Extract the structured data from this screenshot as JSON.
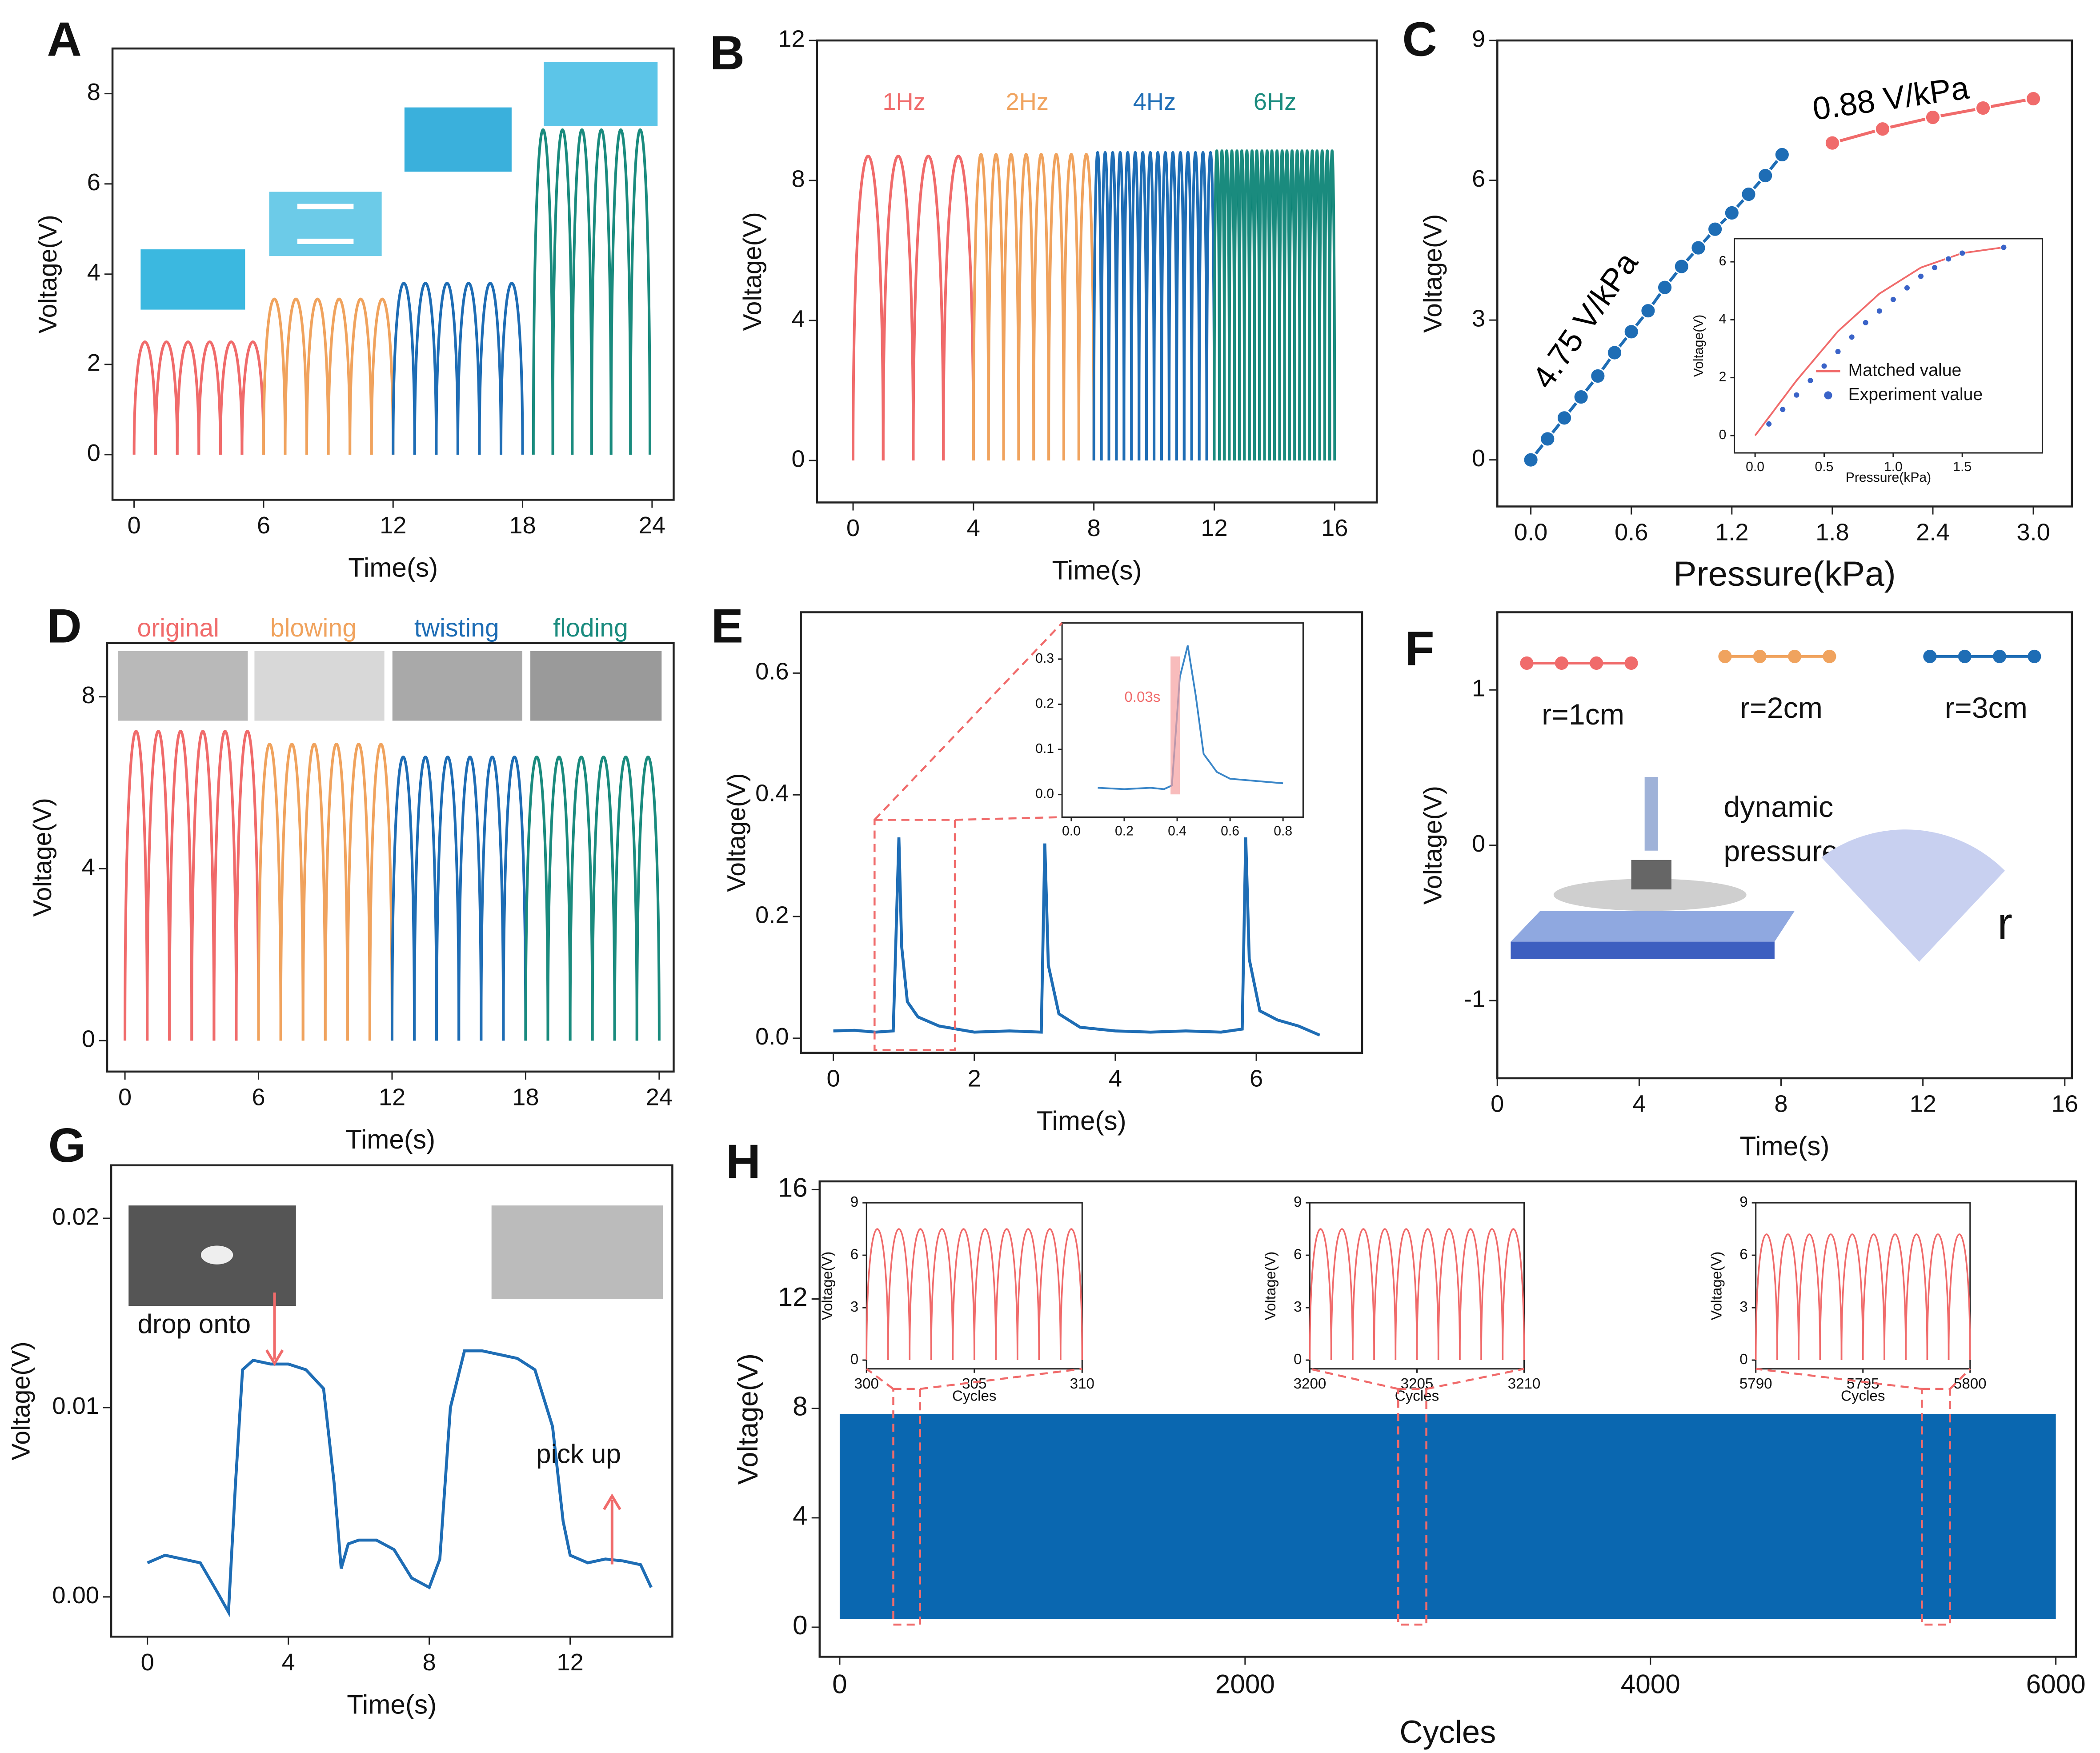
{
  "chart_data": [
    {
      "type": "pulse",
      "panel": "A",
      "xlabel": "Time(s)",
      "ylabel": "Voltage(V)",
      "xlim": [
        -1,
        25
      ],
      "ylim": [
        -1,
        9
      ],
      "xticks": [
        0,
        6,
        12,
        18,
        24
      ],
      "yticks": [
        0,
        2,
        4,
        6,
        8
      ],
      "series": [
        {
          "color": "#f06b6b",
          "x": [
            0,
            1,
            2,
            3,
            4,
            5
          ],
          "values": [
            2.5,
            2.5,
            2.5,
            2.5,
            2.5,
            2.5
          ]
        },
        {
          "color": "#f0a35e",
          "x": [
            6,
            7,
            8,
            9,
            10,
            11
          ],
          "values": [
            3.45,
            3.45,
            3.45,
            3.45,
            3.45,
            3.45
          ]
        },
        {
          "color": "#1e6db5",
          "x": [
            12,
            13,
            14,
            15,
            16,
            17
          ],
          "values": [
            3.8,
            3.8,
            3.8,
            3.8,
            3.8,
            3.8
          ]
        },
        {
          "color": "#1a8b7e",
          "x": [
            18.5,
            19.4,
            20.3,
            21.2,
            22.1,
            23.0
          ],
          "values": [
            7.2,
            7.2,
            7.2,
            7.2,
            7.2,
            7.2
          ]
        }
      ]
    },
    {
      "type": "pulse",
      "panel": "B",
      "xlabel": "Time(s)",
      "ylabel": "Voltage(V)",
      "xlim": [
        -1.2,
        17.4
      ],
      "ylim": [
        -1.2,
        12
      ],
      "xticks": [
        0,
        4,
        8,
        12,
        16
      ],
      "yticks": [
        0,
        4,
        8,
        12
      ],
      "series": [
        {
          "name": "1Hz",
          "color": "#f06b6b",
          "x": [
            0,
            1,
            2,
            3
          ],
          "values": [
            8.7,
            8.7,
            8.7,
            8.7
          ]
        },
        {
          "name": "2Hz",
          "color": "#f0a35e",
          "x": [
            4,
            4.5,
            5,
            5.5,
            6,
            6.5,
            7,
            7.5
          ],
          "values": [
            8.75,
            8.75,
            8.75,
            8.75,
            8.75,
            8.75,
            8.75,
            8.75
          ]
        },
        {
          "name": "4Hz",
          "color": "#1e6db5",
          "x": [
            8,
            8.25,
            8.5,
            8.75,
            9,
            9.25,
            9.5,
            9.75,
            10,
            10.25,
            10.5,
            10.75,
            11,
            11.25,
            11.5,
            11.75
          ],
          "values": [
            8.8,
            8.8,
            8.8,
            8.8,
            8.8,
            8.8,
            8.8,
            8.8,
            8.8,
            8.8,
            8.8,
            8.8,
            8.8,
            8.8,
            8.8,
            8.8
          ]
        },
        {
          "name": "6Hz",
          "color": "#1a8b7e",
          "x": [
            12,
            12.17,
            12.33,
            12.5,
            12.67,
            12.83,
            13,
            13.17,
            13.33,
            13.5,
            13.67,
            13.83,
            14,
            14.17,
            14.33,
            14.5,
            14.67,
            14.83,
            15,
            15.17,
            15.33,
            15.5,
            15.67,
            15.83
          ],
          "values": [
            8.85,
            8.85,
            8.85,
            8.85,
            8.85,
            8.85,
            8.85,
            8.85,
            8.85,
            8.85,
            8.85,
            8.85,
            8.85,
            8.85,
            8.85,
            8.85,
            8.85,
            8.85,
            8.85,
            8.85,
            8.85,
            8.85,
            8.85,
            8.85
          ]
        }
      ]
    },
    {
      "type": "line",
      "panel": "C",
      "xlabel": "Pressure(kPa)",
      "ylabel": "Voltage(V)",
      "xlim": [
        -0.2,
        3.23
      ],
      "ylim": [
        -1,
        9
      ],
      "xticks": [
        {
          "value": 0,
          "label": "0.0"
        },
        0.6,
        1.2,
        1.8,
        2.4,
        {
          "value": 3,
          "label": "3.0"
        }
      ],
      "yticks": [
        0,
        3,
        6,
        9
      ],
      "annotations": [
        "4.75 V/kPa",
        "0.88 V/kPa"
      ],
      "series": [
        {
          "color": "#1e6db5",
          "marker": true,
          "line": true,
          "x": [
            0,
            0.1,
            0.2,
            0.3,
            0.4,
            0.5,
            0.6,
            0.7,
            0.8,
            0.9,
            1.0,
            1.1,
            1.2,
            1.3,
            1.4,
            1.5
          ],
          "values": [
            0,
            0.45,
            0.9,
            1.35,
            1.8,
            2.3,
            2.75,
            3.2,
            3.7,
            4.15,
            4.55,
            4.95,
            5.3,
            5.7,
            6.1,
            6.55
          ]
        },
        {
          "color": "#f06b6b",
          "marker": true,
          "line": true,
          "x": [
            1.8,
            2.1,
            2.4,
            2.7,
            3.0
          ],
          "values": [
            6.8,
            7.1,
            7.35,
            7.55,
            7.75
          ]
        }
      ]
    },
    {
      "type": "line",
      "xlabel": "Pressure(kPa)",
      "ylabel": "Voltage(V)",
      "xlim": [
        -0.15,
        2.08
      ],
      "ylim": [
        -0.6,
        6.8
      ],
      "xticks": [
        {
          "value": 0,
          "label": "0.0"
        },
        0.5,
        {
          "value": 1,
          "label": "1.0"
        },
        1.5
      ],
      "yticks": [
        0,
        2,
        4,
        6
      ],
      "series": [
        {
          "name": "Matched value",
          "color": "#f06b6b",
          "marker": false,
          "line": true,
          "x": [
            0,
            0.3,
            0.6,
            0.9,
            1.2,
            1.5,
            1.8
          ],
          "values": [
            0,
            1.9,
            3.6,
            4.9,
            5.8,
            6.3,
            6.5
          ]
        },
        {
          "name": "Experiment value",
          "color": "#3a63c8",
          "marker": true,
          "line": false,
          "x": [
            0.1,
            0.2,
            0.3,
            0.4,
            0.5,
            0.6,
            0.7,
            0.8,
            0.9,
            1.0,
            1.1,
            1.2,
            1.3,
            1.4,
            1.5,
            1.8
          ],
          "values": [
            0.4,
            0.9,
            1.4,
            1.9,
            2.4,
            2.9,
            3.4,
            3.9,
            4.3,
            4.7,
            5.1,
            5.5,
            5.8,
            6.1,
            6.3,
            6.5
          ]
        }
      ]
    },
    {
      "type": "pulse",
      "panel": "D",
      "xlabel": "Time(s)",
      "ylabel": "Voltage(V)",
      "xlim": [
        -0.8,
        24.65
      ],
      "ylim": [
        -0.72,
        9.25
      ],
      "xticks": [
        0,
        6,
        12,
        18,
        24
      ],
      "yticks": [
        0,
        4,
        8
      ],
      "series": [
        {
          "name": "original",
          "color": "#f06b6b",
          "x": [
            0,
            1,
            2,
            3,
            4,
            5
          ],
          "values": [
            7.2,
            7.2,
            7.2,
            7.2,
            7.2,
            7.2
          ]
        },
        {
          "name": "blowing",
          "color": "#f0a35e",
          "x": [
            6,
            7,
            8,
            9,
            10,
            11
          ],
          "values": [
            6.9,
            6.9,
            6.9,
            6.9,
            6.9,
            6.9
          ]
        },
        {
          "name": "twisting",
          "color": "#1e6db5",
          "x": [
            12,
            13,
            14,
            15,
            16,
            17
          ],
          "values": [
            6.6,
            6.6,
            6.6,
            6.6,
            6.6,
            6.6
          ]
        },
        {
          "name": "floding",
          "color": "#1a8b7e",
          "x": [
            18,
            19,
            20,
            21,
            22,
            23
          ],
          "values": [
            6.6,
            6.6,
            6.6,
            6.6,
            6.6,
            6.6
          ]
        }
      ]
    },
    {
      "type": "line",
      "panel": "E",
      "xlabel": "Time(s)",
      "ylabel": "Voltage(V)",
      "xlim": [
        -0.46,
        7.5
      ],
      "ylim": [
        -0.024,
        0.7
      ],
      "xticks": [
        0,
        2,
        4,
        6
      ],
      "yticks": [
        {
          "value": 0,
          "label": "0.0"
        },
        0.2,
        0.4,
        0.6
      ],
      "series": [
        {
          "color": "#1e6db5",
          "marker": false,
          "line": true,
          "x": [
            0,
            0.3,
            0.6,
            0.85,
            0.93,
            0.97,
            1.05,
            1.2,
            1.5,
            2.0,
            2.5,
            2.95,
            3.0,
            3.05,
            3.2,
            3.5,
            4,
            4.5,
            5,
            5.5,
            5.8,
            5.85,
            5.9,
            6.05,
            6.3,
            6.6,
            6.9
          ],
          "values": [
            0.012,
            0.013,
            0.01,
            0.012,
            0.33,
            0.15,
            0.06,
            0.035,
            0.02,
            0.01,
            0.012,
            0.01,
            0.32,
            0.12,
            0.04,
            0.018,
            0.012,
            0.01,
            0.012,
            0.01,
            0.015,
            0.33,
            0.13,
            0.045,
            0.03,
            0.02,
            0.005
          ]
        }
      ]
    },
    {
      "type": "line",
      "xlim": [
        -0.035,
        0.876
      ],
      "ylim": [
        -0.05,
        0.38
      ],
      "xticks": [
        {
          "value": 0,
          "label": "0.0"
        },
        0.2,
        0.4,
        0.6,
        0.8
      ],
      "yticks": [
        {
          "value": 0,
          "label": "0.0"
        },
        0.1,
        0.2,
        0.3
      ],
      "annotations": [
        "0.03s"
      ],
      "series": [
        {
          "color": "#3a86c8",
          "marker": false,
          "line": true,
          "x": [
            0.1,
            0.2,
            0.3,
            0.35,
            0.38,
            0.41,
            0.44,
            0.47,
            0.5,
            0.55,
            0.6,
            0.7,
            0.8
          ],
          "values": [
            0.015,
            0.012,
            0.015,
            0.012,
            0.02,
            0.26,
            0.33,
            0.22,
            0.09,
            0.05,
            0.035,
            0.03,
            0.025
          ]
        }
      ]
    },
    {
      "type": "line",
      "panel": "F",
      "xlabel": "Time(s)",
      "ylabel": "Voltage(V)",
      "xlim": [
        0,
        16.2
      ],
      "ylim": [
        -1.5,
        1.5
      ],
      "xticks": [
        0,
        4,
        8,
        12,
        16
      ],
      "yticks": [
        -1,
        0,
        1
      ],
      "annotations": [
        "dynamic",
        "pressure",
        "r"
      ],
      "series": [
        {
          "name": "r=1cm",
          "color": "#f06b6b"
        },
        {
          "name": "r=2cm",
          "color": "#f0a35e"
        },
        {
          "name": "r=3cm",
          "color": "#1e6db5"
        }
      ]
    },
    {
      "type": "line",
      "panel": "G",
      "xlabel": "Time(s)",
      "ylabel": "Voltage(V)",
      "xlim": [
        -1.03,
        14.9
      ],
      "ylim": [
        -0.0021,
        0.0228
      ],
      "xticks": [
        0,
        4,
        8,
        12
      ],
      "yticks": [
        {
          "value": 0,
          "label": "0.00"
        },
        0.01,
        0.02
      ],
      "annotations": [
        "drop onto",
        "pick up"
      ],
      "series": [
        {
          "color": "#1e6db5",
          "marker": false,
          "line": true,
          "x": [
            0,
            0.5,
            1,
            1.5,
            2,
            2.3,
            2.5,
            2.7,
            3,
            3.5,
            4,
            4.5,
            5,
            5.3,
            5.5,
            5.7,
            6,
            6.5,
            7,
            7.5,
            8,
            8.3,
            8.6,
            9,
            9.5,
            10,
            10.5,
            11,
            11.5,
            11.8,
            12,
            12.5,
            13,
            13.5,
            14,
            14.3
          ],
          "values": [
            0.0018,
            0.0022,
            0.002,
            0.0018,
            0.0002,
            -0.0008,
            0.006,
            0.012,
            0.0125,
            0.0123,
            0.0123,
            0.012,
            0.011,
            0.006,
            0.0015,
            0.0028,
            0.003,
            0.003,
            0.0025,
            0.001,
            0.0005,
            0.002,
            0.01,
            0.013,
            0.013,
            0.0128,
            0.0126,
            0.012,
            0.009,
            0.004,
            0.0022,
            0.0018,
            0.002,
            0.0019,
            0.0017,
            0.0005
          ]
        }
      ]
    },
    {
      "type": "band",
      "panel": "H",
      "xlabel": "Cycles",
      "ylabel": "Voltage(V)",
      "xlim": [
        -99,
        6099
      ],
      "ylim": [
        -1.08,
        16.3
      ],
      "xticks": [
        0,
        2000,
        4000,
        6000
      ],
      "yticks": [
        0,
        4,
        8,
        12,
        16
      ],
      "series": [
        {
          "color": "#0a67b0",
          "x": [
            0,
            6000
          ],
          "upper": [
            7.8,
            7.8
          ],
          "lower": [
            0.3,
            0.3
          ]
        }
      ]
    },
    {
      "type": "pulse",
      "xlabel": "Cycles",
      "ylabel": "Voltage(V)",
      "xlim": [
        300,
        310
      ],
      "ylim": [
        -0.5,
        9
      ],
      "xticks": [
        300,
        305,
        310
      ],
      "yticks": [
        0,
        3,
        6,
        9
      ],
      "series": [
        {
          "color": "#f06b6b",
          "x": [
            300,
            301,
            302,
            303,
            304,
            305,
            306,
            307,
            308,
            309
          ],
          "values": [
            7.5,
            7.5,
            7.5,
            7.5,
            7.5,
            7.5,
            7.5,
            7.5,
            7.5,
            7.5
          ]
        }
      ]
    },
    {
      "type": "pulse",
      "xlabel": "Cycles",
      "ylabel": "Voltage(V)",
      "xlim": [
        3200,
        3210
      ],
      "ylim": [
        -0.5,
        9
      ],
      "xticks": [
        3200,
        3205,
        3210
      ],
      "yticks": [
        0,
        3,
        6,
        9
      ],
      "series": [
        {
          "color": "#f06b6b",
          "x": [
            3200,
            3201,
            3202,
            3203,
            3204,
            3205,
            3206,
            3207,
            3208,
            3209
          ],
          "values": [
            7.5,
            7.5,
            7.5,
            7.5,
            7.5,
            7.5,
            7.5,
            7.5,
            7.5,
            7.5
          ]
        }
      ]
    },
    {
      "type": "pulse",
      "xlabel": "Cycles",
      "ylabel": "Voltage(V)",
      "xlim": [
        5790,
        5800
      ],
      "ylim": [
        -0.5,
        9
      ],
      "xticks": [
        5790,
        5795,
        5800
      ],
      "yticks": [
        0,
        3,
        6,
        9
      ],
      "series": [
        {
          "color": "#f06b6b",
          "x": [
            5790,
            5791,
            5792,
            5793,
            5794,
            5795,
            5796,
            5797,
            5798,
            5799
          ],
          "values": [
            7.2,
            7.2,
            7.2,
            7.2,
            7.2,
            7.2,
            7.2,
            7.2,
            7.2,
            7.2
          ]
        }
      ]
    }
  ]
}
